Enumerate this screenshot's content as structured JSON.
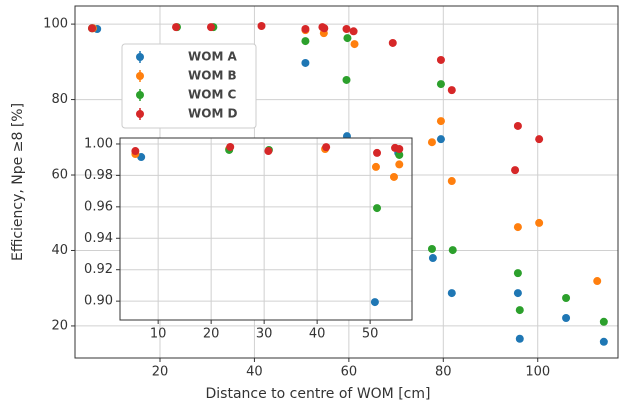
{
  "chart_data": [
    {
      "type": "scatter",
      "ylabel": "Efficiency, Npe ≥8 [%]",
      "xlabel": "Distance to centre of WOM [cm]",
      "xlim": [
        2,
        117
      ],
      "ylim": [
        11.5,
        104.8
      ],
      "xticks": [
        20,
        40,
        60,
        80,
        100
      ],
      "yticks": [
        20,
        40,
        60,
        80,
        100
      ],
      "grid": true,
      "legend": "upper left",
      "series": [
        {
          "name": "WOM A",
          "color": "#1f77b4",
          "x": [
            6.7,
            50.8,
            59.6,
            79.5,
            77.8,
            81.8,
            95.8,
            96.2,
            106,
            114
          ],
          "values": [
            98.7,
            89.7,
            70.3,
            69.5,
            38.0,
            28.7,
            28.7,
            16.6,
            22.1,
            15.8
          ]
        },
        {
          "name": "WOM B",
          "color": "#ff7f0e",
          "x": [
            5.8,
            50.8,
            54.7,
            61.2,
            77.6,
            79.5,
            81.8,
            95.8,
            100.3,
            112.6
          ],
          "values": [
            98.9,
            98.4,
            97.6,
            94.7,
            68.7,
            74.3,
            58.4,
            46.2,
            47.3,
            31.9
          ]
        },
        {
          "name": "WOM C",
          "color": "#2ca02c",
          "x": [
            5.6,
            23.6,
            31.3,
            50.8,
            59.5,
            59.7,
            77.6,
            79.5,
            82,
            95.8,
            96.2,
            106,
            114
          ],
          "values": [
            98.9,
            99.2,
            99.2,
            95.5,
            85.2,
            96.3,
            40.4,
            84.1,
            40.1,
            34.0,
            24.2,
            27.4,
            21.1
          ]
        },
        {
          "name": "WOM D",
          "color": "#d62728",
          "x": [
            5.6,
            23.4,
            30.8,
            41.5,
            50.8,
            54.4,
            54.8,
            59.5,
            61,
            69.3,
            79.5,
            81.8,
            95.8,
            95.2,
            100.3
          ],
          "values": [
            98.9,
            99.2,
            99.2,
            99.5,
            98.7,
            99.2,
            98.9,
            98.7,
            98.1,
            95.0,
            90.5,
            82.5,
            73.0,
            61.3,
            69.5
          ]
        }
      ]
    },
    {
      "type": "scatter",
      "xlim": [
        2.8,
        57.9
      ],
      "ylim": [
        0.888,
        1.0038
      ],
      "xticks": [
        10,
        20,
        30,
        40,
        50
      ],
      "yticks": [
        {
          "value": 0.9,
          "label": "0.90"
        },
        0.92,
        0.94,
        0.96,
        0.98,
        {
          "value": 1,
          "label": "1.00"
        }
      ],
      "grid": true,
      "series": [
        {
          "color": "#1f77b4",
          "x": [
            6.8,
            50.9,
            55.3
          ],
          "values": [
            0.9917,
            0.8994,
            0.9943
          ]
        },
        {
          "color": "#ff7f0e",
          "x": [
            5.7,
            23.4,
            41.5,
            51.1,
            54.5,
            55.5
          ],
          "values": [
            0.9936,
            0.9968,
            0.9968,
            0.9854,
            0.979,
            0.987
          ]
        },
        {
          "color": "#2ca02c",
          "x": [
            23.4,
            30.9,
            51.3,
            55.5
          ],
          "values": [
            0.9962,
            0.9962,
            0.9592,
            0.993
          ]
        },
        {
          "color": "#d62728",
          "x": [
            5.7,
            23.6,
            30.8,
            41.7,
            51.3,
            54.7,
            55.5
          ],
          "values": [
            0.9955,
            0.9981,
            0.9955,
            0.998,
            0.9943,
            0.9975,
            0.9968
          ]
        }
      ]
    }
  ]
}
